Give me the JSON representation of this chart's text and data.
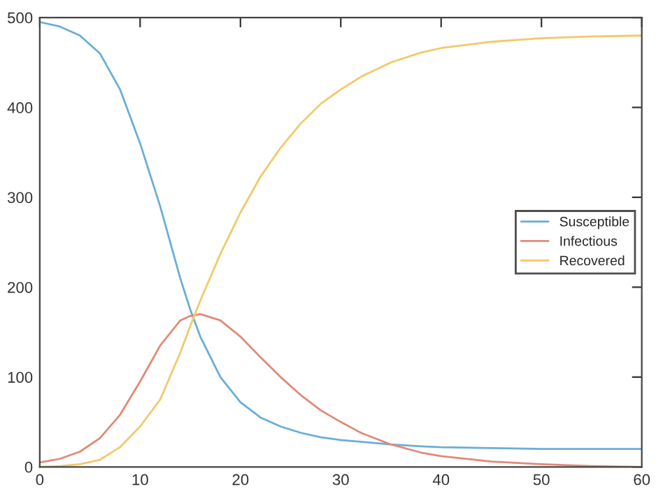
{
  "chart_data": {
    "type": "line",
    "x": [
      0,
      2,
      4,
      6,
      8,
      10,
      12,
      14,
      15,
      16,
      18,
      20,
      22,
      24,
      26,
      28,
      30,
      32,
      35,
      38,
      40,
      45,
      50,
      55,
      60
    ],
    "series": [
      {
        "name": "Susceptible",
        "color": "#6aaed6",
        "values": [
          495,
          490,
          480,
          460,
          420,
          360,
          290,
          210,
          175,
          145,
          100,
          72,
          55,
          45,
          38,
          33,
          30,
          28,
          25,
          23,
          22,
          21,
          20,
          20,
          20
        ]
      },
      {
        "name": "Infectious",
        "color": "#e08a78",
        "values": [
          5,
          9,
          17,
          32,
          58,
          95,
          135,
          163,
          168,
          170,
          163,
          145,
          122,
          100,
          80,
          63,
          50,
          38,
          25,
          16,
          12,
          6,
          3,
          1,
          0
        ]
      },
      {
        "name": "Recovered",
        "color": "#f2c96a",
        "values": [
          0,
          1,
          3,
          8,
          22,
          45,
          75,
          127,
          157,
          185,
          237,
          283,
          323,
          355,
          382,
          404,
          420,
          434,
          450,
          461,
          466,
          473,
          477,
          479,
          480
        ]
      }
    ],
    "xlim": [
      0,
      60
    ],
    "xticks": [
      0,
      10,
      20,
      30,
      40,
      50,
      60
    ],
    "ylim": [
      0,
      500
    ],
    "yticks": [
      0,
      100,
      200,
      300,
      400,
      500
    ],
    "grid": false,
    "legend": "right",
    "marker": "none",
    "line_style": "solid"
  }
}
